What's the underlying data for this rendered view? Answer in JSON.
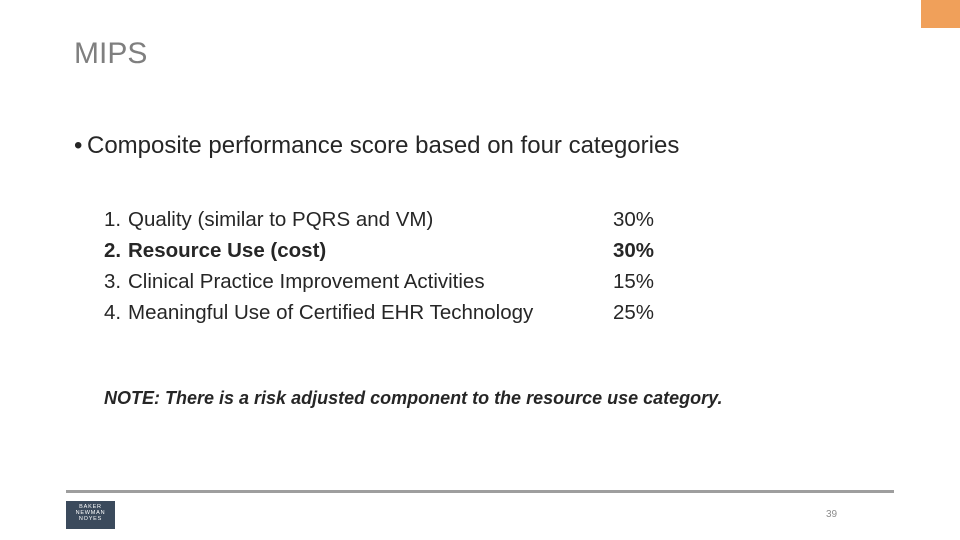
{
  "colors": {
    "accent": "#f0a05a",
    "title": "#7f7f7f",
    "text": "#262626",
    "footer_rule": "#9e9e9e",
    "logo_bg": "#3b4a5c",
    "page_number": "#8c8c8c"
  },
  "slide": {
    "title": "MIPS",
    "bullet_glyph": "•",
    "bullet_text": "Composite performance score based on four categories",
    "categories": [
      {
        "number": "1.",
        "label": "Quality (similar to PQRS and VM)",
        "percent": "30%",
        "emphasis": false
      },
      {
        "number": "2.",
        "label": "Resource Use (cost)",
        "percent": "30%",
        "emphasis": true
      },
      {
        "number": "3.",
        "label": "Clinical Practice Improvement Activities",
        "percent": "15%",
        "emphasis": false
      },
      {
        "number": "4.",
        "label": "Meaningful Use of Certified EHR Technology",
        "percent": "25%",
        "emphasis": false
      }
    ],
    "note": "NOTE:  There is a risk adjusted component to the resource use category."
  },
  "footer": {
    "logo_lines": [
      "BAKER",
      "NEWMAN",
      "NOYES"
    ],
    "page_number": "39"
  }
}
